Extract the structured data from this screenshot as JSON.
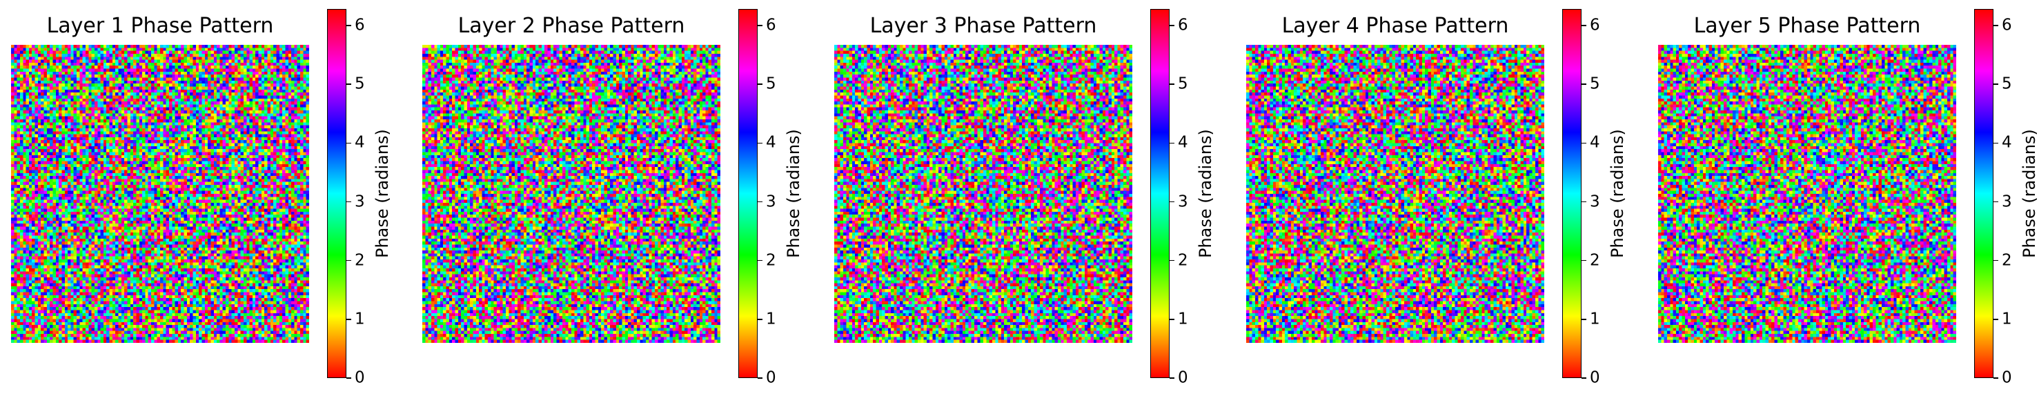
{
  "chart_data": [
    {
      "type": "heatmap",
      "title": "Layer 1 Phase Pattern",
      "colormap": "hsv",
      "grid_size": 100,
      "vmin": 0,
      "vmax": 6.283,
      "colorbar_label": "Phase (radians)",
      "colorbar_ticks": [
        "0",
        "1",
        "2",
        "3",
        "4",
        "5",
        "6"
      ],
      "axes": "off"
    },
    {
      "type": "heatmap",
      "title": "Layer 2 Phase Pattern",
      "colormap": "hsv",
      "grid_size": 100,
      "vmin": 0,
      "vmax": 6.283,
      "colorbar_label": "Phase (radians)",
      "colorbar_ticks": [
        "0",
        "1",
        "2",
        "3",
        "4",
        "5",
        "6"
      ],
      "axes": "off"
    },
    {
      "type": "heatmap",
      "title": "Layer 3 Phase Pattern",
      "colormap": "hsv",
      "grid_size": 100,
      "vmin": 0,
      "vmax": 6.283,
      "colorbar_label": "Phase (radians)",
      "colorbar_ticks": [
        "0",
        "1",
        "2",
        "3",
        "4",
        "5",
        "6"
      ],
      "axes": "off"
    },
    {
      "type": "heatmap",
      "title": "Layer 4 Phase Pattern",
      "colormap": "hsv",
      "grid_size": 100,
      "vmin": 0,
      "vmax": 6.283,
      "colorbar_label": "Phase (radians)",
      "colorbar_ticks": [
        "0",
        "1",
        "2",
        "3",
        "4",
        "5",
        "6"
      ],
      "axes": "off"
    },
    {
      "type": "heatmap",
      "title": "Layer 5 Phase Pattern",
      "colormap": "hsv",
      "grid_size": 100,
      "vmin": 0,
      "vmax": 6.283,
      "colorbar_label": "Phase (radians)",
      "colorbar_ticks": [
        "0",
        "1",
        "2",
        "3",
        "4",
        "5",
        "6"
      ],
      "axes": "off"
    }
  ]
}
